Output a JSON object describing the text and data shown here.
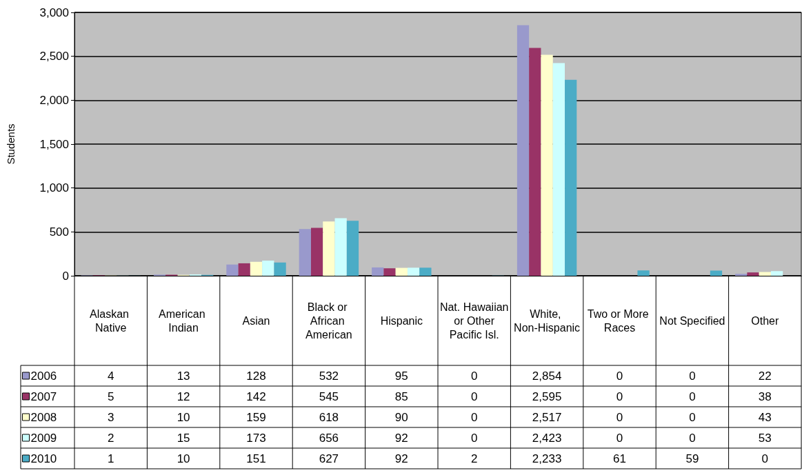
{
  "chart_data": {
    "type": "bar",
    "ylabel": "Students",
    "categories": [
      "Alaskan Native",
      "American Indian",
      "Asian",
      "Black or African American",
      "Hispanic",
      "Nat. Hawaiian or Other Pacific Isl.",
      "White, Non-Hispanic",
      "Two or More Races",
      "Not Specified",
      "Other"
    ],
    "series": [
      {
        "name": "2006",
        "color": "#9999cc",
        "values": [
          4,
          13,
          128,
          532,
          95,
          0,
          2854,
          0,
          0,
          22
        ],
        "value_labels": [
          "4",
          "13",
          "128",
          "532",
          "95",
          "0",
          "2,854",
          "0",
          "0",
          "22"
        ]
      },
      {
        "name": "2007",
        "color": "#993366",
        "values": [
          5,
          12,
          142,
          545,
          85,
          0,
          2595,
          0,
          0,
          38
        ],
        "value_labels": [
          "5",
          "12",
          "142",
          "545",
          "85",
          "0",
          "2,595",
          "0",
          "0",
          "38"
        ]
      },
      {
        "name": "2008",
        "color": "#ffffcc",
        "values": [
          3,
          10,
          159,
          618,
          90,
          0,
          2517,
          0,
          0,
          43
        ],
        "value_labels": [
          "3",
          "10",
          "159",
          "618",
          "90",
          "0",
          "2,517",
          "0",
          "0",
          "43"
        ]
      },
      {
        "name": "2009",
        "color": "#ccffff",
        "values": [
          2,
          15,
          173,
          656,
          92,
          0,
          2423,
          0,
          0,
          53
        ],
        "value_labels": [
          "2",
          "15",
          "173",
          "656",
          "92",
          "0",
          "2,423",
          "0",
          "0",
          "53"
        ]
      },
      {
        "name": "2010",
        "color": "#4bacc6",
        "values": [
          1,
          10,
          151,
          627,
          92,
          2,
          2233,
          61,
          59,
          0
        ],
        "value_labels": [
          "1",
          "10",
          "151",
          "627",
          "92",
          "2",
          "2,233",
          "61",
          "59",
          "0"
        ]
      }
    ],
    "ylim": [
      0,
      3000
    ],
    "yticks": [
      0,
      500,
      {
        "value": 1000,
        "label": "1,000"
      },
      {
        "value": 1500,
        "label": "1,500"
      },
      {
        "value": 2000,
        "label": "2,000"
      },
      {
        "value": 2500,
        "label": "2,500"
      },
      {
        "value": 3000,
        "label": "3,000"
      }
    ],
    "grid": "y",
    "legend": "bottom left"
  }
}
